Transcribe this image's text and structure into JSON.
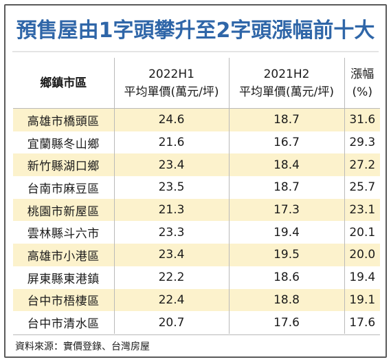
{
  "title": "預售屋由1字頭攀升至2字頭漲幅前十大",
  "headers": {
    "region": "鄉鎮市區",
    "price_2022_period": "2022H1",
    "price_2022_label": "平均單價(萬元/坪)",
    "price_2021_period": "2021H2",
    "price_2021_label": "平均單價(萬元/坪)",
    "change_label": "漲幅",
    "change_unit": "(%)"
  },
  "rows": [
    {
      "region": "高雄市橋頭區",
      "price_2022": "24.6",
      "price_2021": "18.7",
      "change": "31.6"
    },
    {
      "region": "宜蘭縣冬山鄉",
      "price_2022": "21.6",
      "price_2021": "16.7",
      "change": "29.3"
    },
    {
      "region": "新竹縣湖口鄉",
      "price_2022": "23.4",
      "price_2021": "18.4",
      "change": "27.2"
    },
    {
      "region": "台南市麻豆區",
      "price_2022": "23.5",
      "price_2021": "18.7",
      "change": "25.7"
    },
    {
      "region": "桃園市新屋區",
      "price_2022": "21.3",
      "price_2021": "17.3",
      "change": "23.1"
    },
    {
      "region": "雲林縣斗六市",
      "price_2022": "23.3",
      "price_2021": "19.4",
      "change": "20.1"
    },
    {
      "region": "高雄市小港區",
      "price_2022": "23.4",
      "price_2021": "19.5",
      "change": "20.0"
    },
    {
      "region": "屏東縣東港鎮",
      "price_2022": "22.2",
      "price_2021": "18.6",
      "change": "19.4"
    },
    {
      "region": "台中市梧棲區",
      "price_2022": "22.4",
      "price_2021": "18.8",
      "change": "19.1"
    },
    {
      "region": "台中市清水區",
      "price_2022": "20.7",
      "price_2021": "17.6",
      "change": "17.6"
    }
  ],
  "source": "資料來源：實價登錄、台灣房屋",
  "colors": {
    "title": "#2f66a8",
    "row_shade": "#fcf2cc",
    "border": "#5a5a5a"
  }
}
